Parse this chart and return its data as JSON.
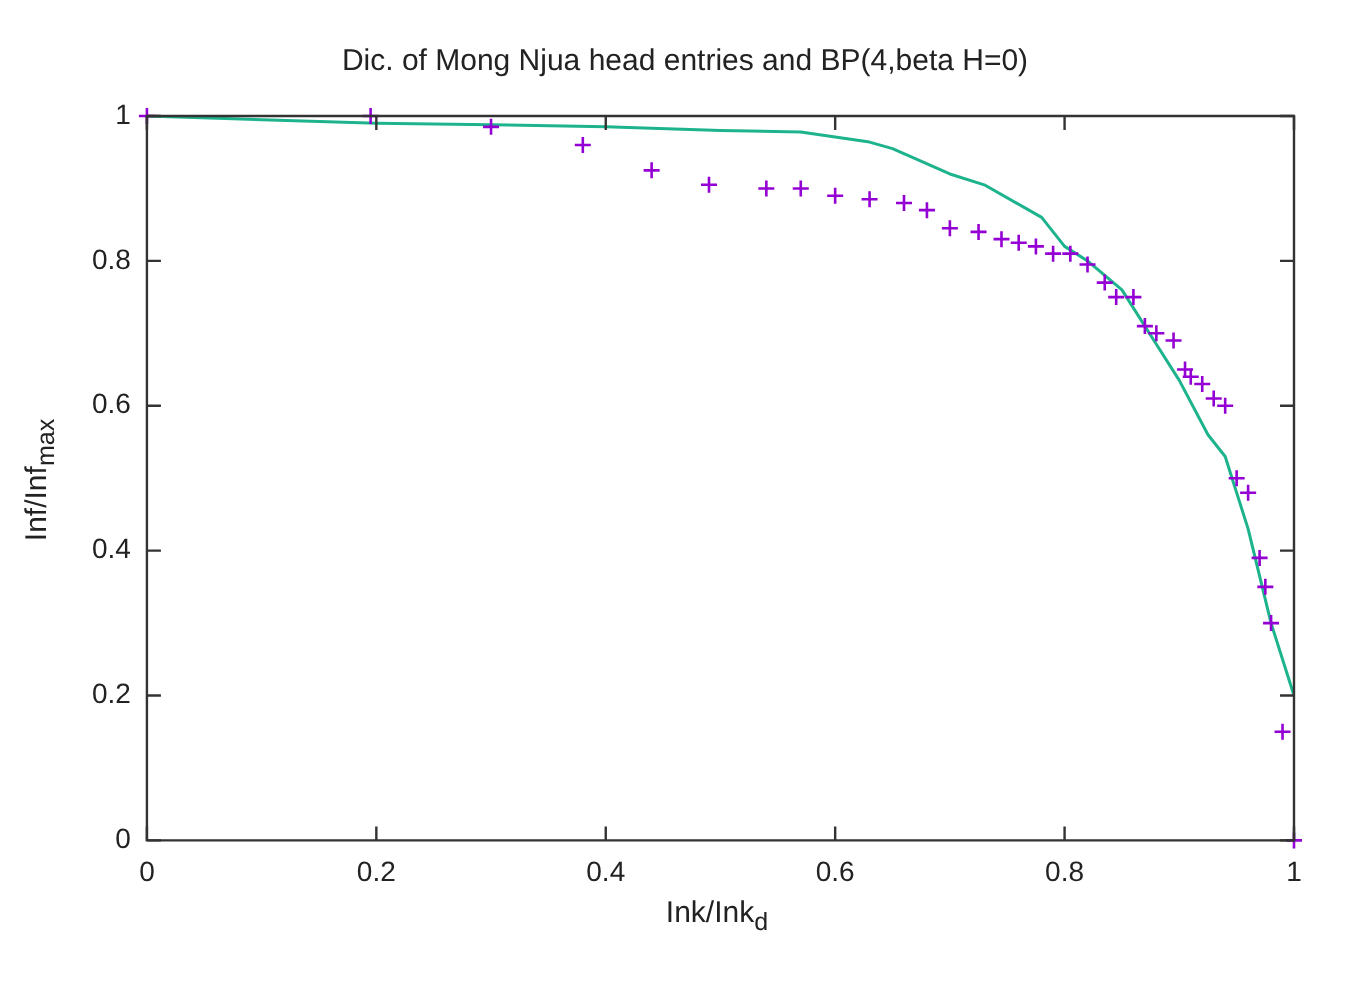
{
  "chart_data": {
    "type": "scatter",
    "title": "Dic. of Mong Njua head entries and BP(4,beta H=0)",
    "xlabel": "Ink/Ink$_{d}$",
    "ylabel": "Inf/Inf$_{max}$",
    "xlim": [
      0,
      1
    ],
    "ylim": [
      0,
      1
    ],
    "xticks": [
      0,
      0.2,
      0.4,
      0.6,
      0.8,
      1
    ],
    "yticks": [
      0,
      0.2,
      0.4,
      0.6,
      0.8,
      1
    ],
    "grid": false,
    "legend": false,
    "series": [
      {
        "marker": "cross",
        "color": "#9400d3",
        "x": [
          0,
          0.195,
          0.3,
          0.38,
          0.44,
          0.49,
          0.54,
          0.57,
          0.6,
          0.63,
          0.66,
          0.68,
          0.7,
          0.725,
          0.745,
          0.76,
          0.775,
          0.79,
          0.805,
          0.82,
          0.835,
          0.845,
          0.86,
          0.87,
          0.88,
          0.895,
          0.905,
          0.91,
          0.92,
          0.93,
          0.94,
          0.95,
          0.96,
          0.97,
          0.975,
          0.98,
          0.99,
          1
        ],
        "values": [
          1,
          1,
          0.985,
          0.96,
          0.925,
          0.905,
          0.9,
          0.9,
          0.89,
          0.885,
          0.88,
          0.87,
          0.845,
          0.84,
          0.83,
          0.825,
          0.82,
          0.81,
          0.81,
          0.795,
          0.77,
          0.75,
          0.75,
          0.71,
          0.7,
          0.69,
          0.65,
          0.64,
          0.63,
          0.61,
          0.6,
          0.5,
          0.48,
          0.39,
          0.35,
          0.3,
          0.15,
          0
        ]
      },
      {
        "type": "line",
        "marker": "none",
        "line_style": "solid",
        "color": "#1db38c",
        "x": [
          0,
          0.2,
          0.3,
          0.4,
          0.5,
          0.57,
          0.63,
          0.65,
          0.7,
          0.73,
          0.78,
          0.8,
          0.82,
          0.85,
          0.88,
          0.9,
          0.925,
          0.94,
          0.96,
          0.98,
          1
        ],
        "values": [
          1,
          0.99,
          0.988,
          0.985,
          0.98,
          0.978,
          0.964,
          0.955,
          0.92,
          0.905,
          0.86,
          0.82,
          0.8,
          0.76,
          0.685,
          0.635,
          0.56,
          0.53,
          0.43,
          0.3,
          0.2
        ]
      }
    ]
  }
}
